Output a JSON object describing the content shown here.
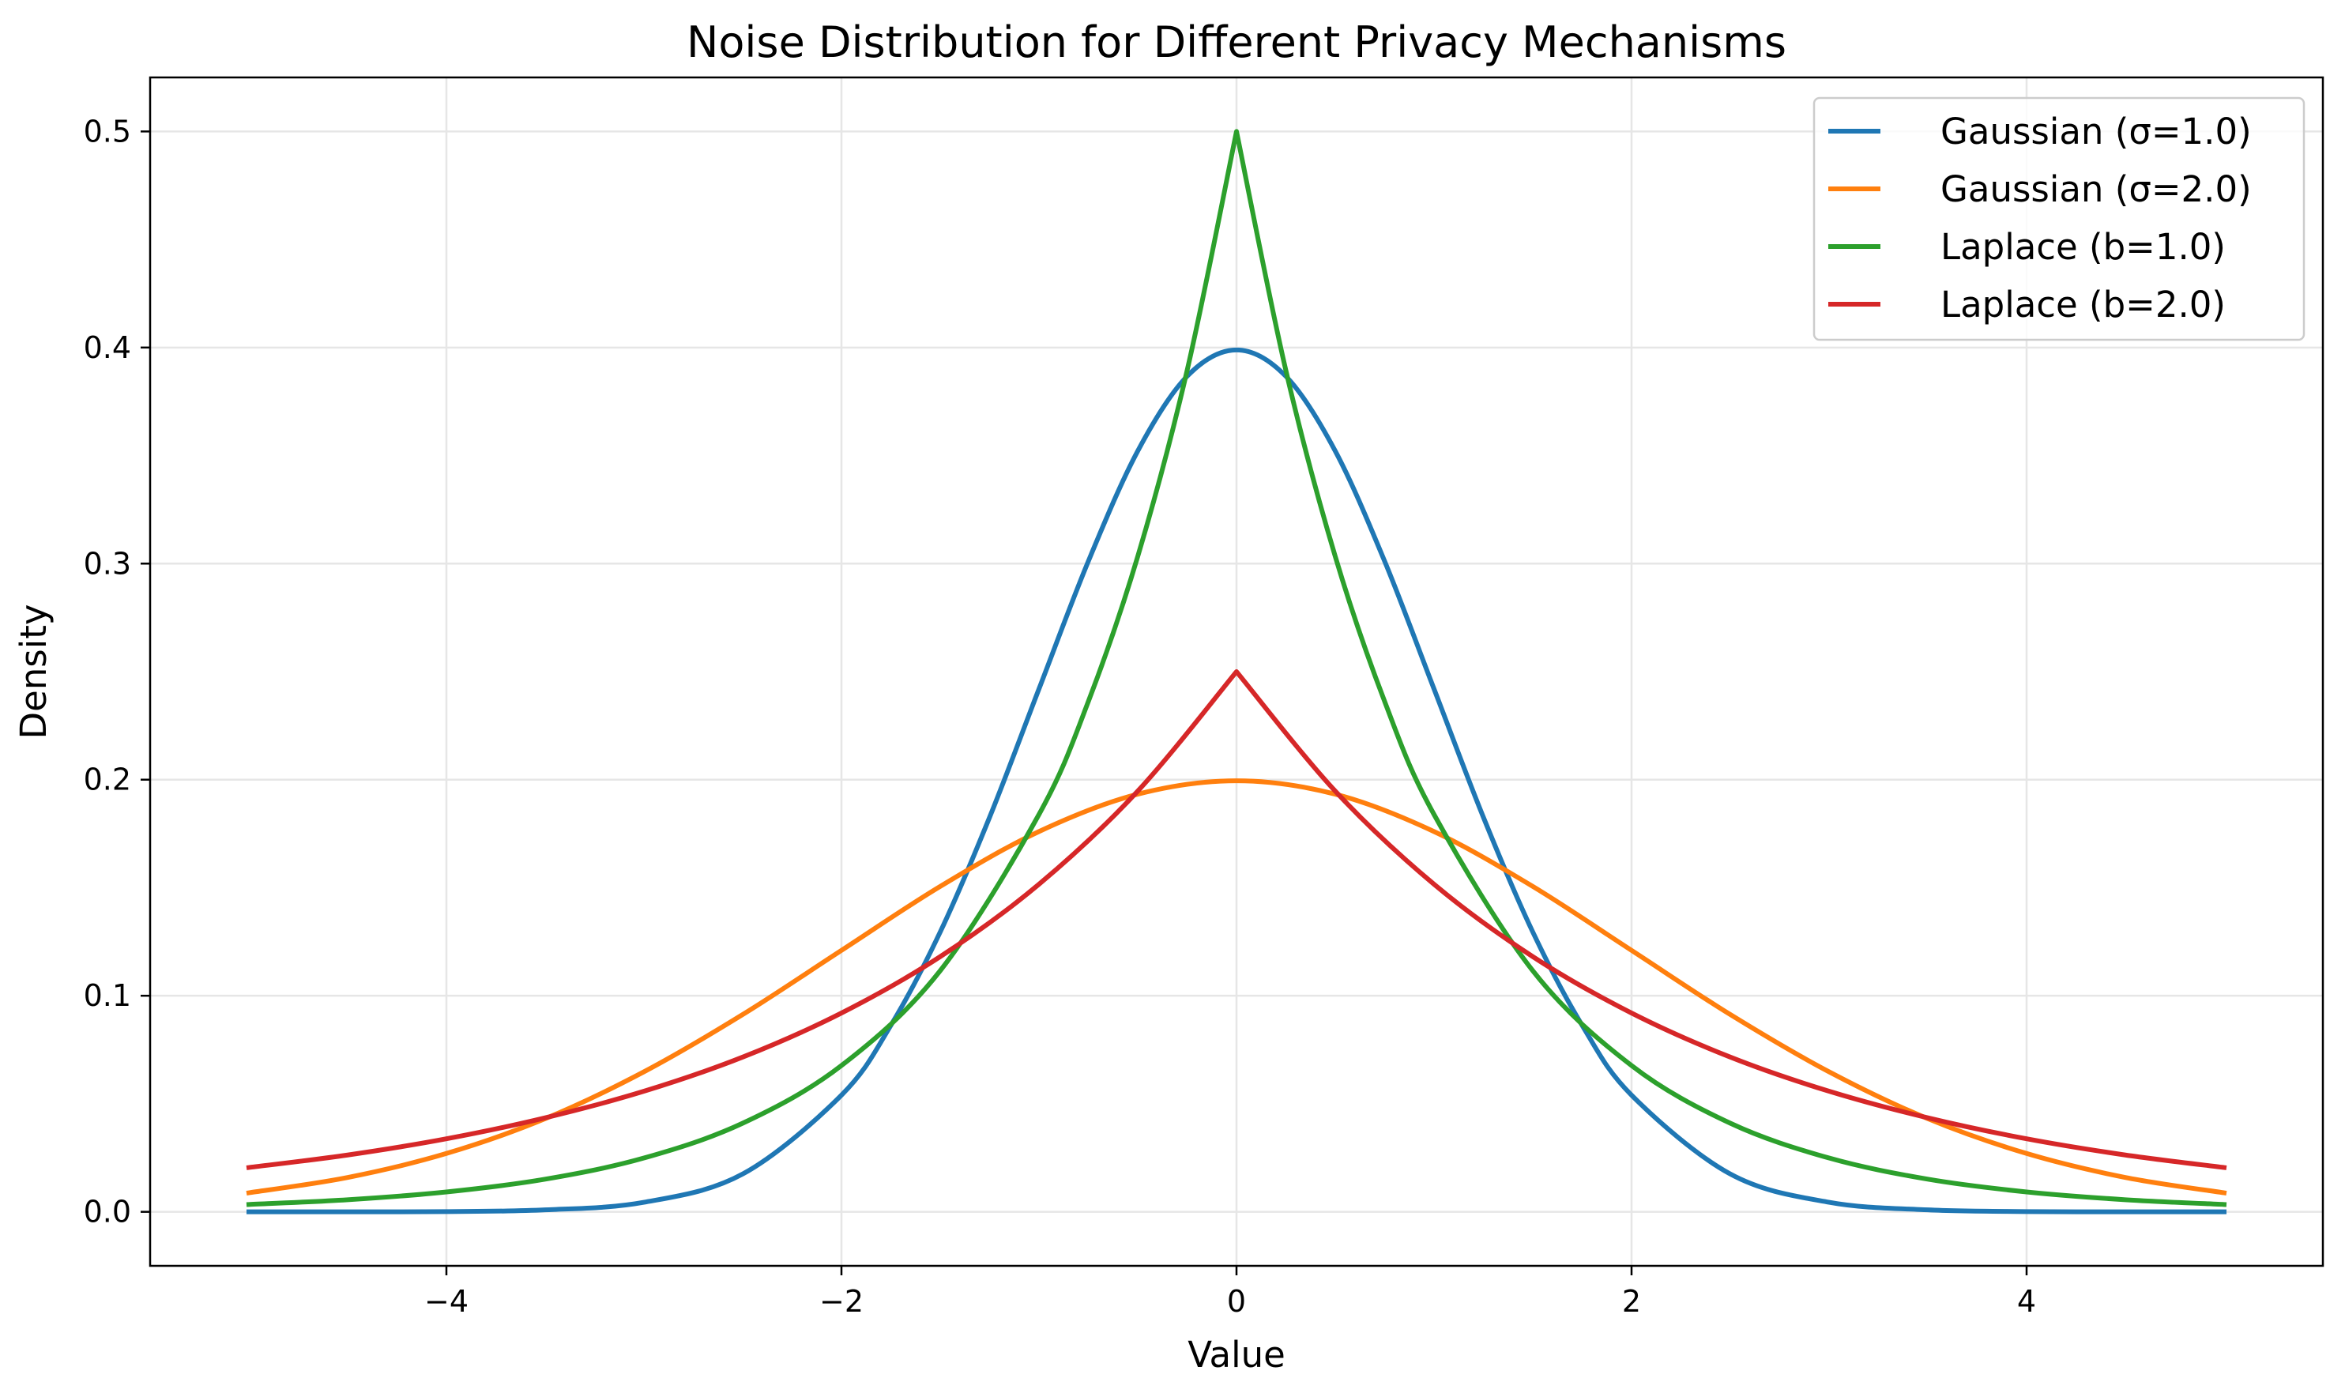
{
  "chart_data": {
    "type": "line",
    "title": "Noise Distribution for Different Privacy Mechanisms",
    "xlabel": "Value",
    "ylabel": "Density",
    "xlim": [
      -5.5,
      5.5
    ],
    "ylim": [
      -0.025,
      0.525
    ],
    "x_range": [
      -5,
      5
    ],
    "xticks": [
      -4,
      -2,
      0,
      2,
      4
    ],
    "xtick_labels": [
      "−4",
      "−2",
      "0",
      "2",
      "4"
    ],
    "yticks": [
      0.0,
      0.1,
      0.2,
      0.3,
      0.4,
      0.5
    ],
    "ytick_labels": [
      "0.0",
      "0.1",
      "0.2",
      "0.3",
      "0.4",
      "0.5"
    ],
    "grid": true,
    "legend_position": "top-right",
    "series": [
      {
        "name": "Gaussian (σ=1.0)",
        "color": "#1f77b4",
        "x": [
          -5,
          -4.5,
          -4,
          -3.5,
          -3,
          -2.5,
          -2,
          -1.75,
          -1.5,
          -1.25,
          -1,
          -0.75,
          -0.5,
          -0.25,
          0,
          0.25,
          0.5,
          0.75,
          1,
          1.25,
          1.5,
          1.75,
          2,
          2.5,
          3,
          3.5,
          4,
          4.5,
          5
        ],
        "y": [
          0.0,
          0.0,
          0.0001,
          0.0009,
          0.0044,
          0.0175,
          0.054,
          0.0863,
          0.1295,
          0.1826,
          0.242,
          0.3011,
          0.3521,
          0.3867,
          0.3989,
          0.3867,
          0.3521,
          0.3011,
          0.242,
          0.1826,
          0.1295,
          0.0863,
          0.054,
          0.0175,
          0.0044,
          0.0009,
          0.0001,
          0.0,
          0.0
        ]
      },
      {
        "name": "Gaussian (σ=2.0)",
        "color": "#ff7f0e",
        "x": [
          -5,
          -4.5,
          -4,
          -3.5,
          -3,
          -2.5,
          -2,
          -1.5,
          -1,
          -0.5,
          0,
          0.5,
          1,
          1.5,
          2,
          2.5,
          3,
          3.5,
          4,
          4.5,
          5
        ],
        "y": [
          0.0088,
          0.0159,
          0.027,
          0.0431,
          0.0648,
          0.0913,
          0.121,
          0.1506,
          0.176,
          0.1933,
          0.1995,
          0.1933,
          0.176,
          0.1506,
          0.121,
          0.0913,
          0.0648,
          0.0431,
          0.027,
          0.0159,
          0.0088
        ]
      },
      {
        "name": "Laplace (b=1.0)",
        "color": "#2ca02c",
        "x": [
          -5,
          -4.5,
          -4,
          -3.5,
          -3,
          -2.5,
          -2,
          -1.5,
          -1,
          -0.75,
          -0.5,
          -0.25,
          0,
          0.25,
          0.5,
          0.75,
          1,
          1.5,
          2,
          2.5,
          3,
          3.5,
          4,
          4.5,
          5
        ],
        "y": [
          0.0034,
          0.0056,
          0.0092,
          0.0151,
          0.0249,
          0.041,
          0.0677,
          0.1116,
          0.1839,
          0.2362,
          0.3033,
          0.3894,
          0.5,
          0.3894,
          0.3033,
          0.2362,
          0.1839,
          0.1116,
          0.0677,
          0.041,
          0.0249,
          0.0151,
          0.0092,
          0.0056,
          0.0034
        ]
      },
      {
        "name": "Laplace (b=2.0)",
        "color": "#d62728",
        "x": [
          -5,
          -4.5,
          -4,
          -3.5,
          -3,
          -2.5,
          -2,
          -1.5,
          -1,
          -0.5,
          0,
          0.5,
          1,
          1.5,
          2,
          2.5,
          3,
          3.5,
          4,
          4.5,
          5
        ],
        "y": [
          0.0205,
          0.0263,
          0.0338,
          0.0435,
          0.0558,
          0.0716,
          0.092,
          0.1181,
          0.1516,
          0.1947,
          0.25,
          0.1947,
          0.1516,
          0.1181,
          0.092,
          0.0716,
          0.0558,
          0.0435,
          0.0338,
          0.0263,
          0.0205
        ]
      }
    ]
  }
}
